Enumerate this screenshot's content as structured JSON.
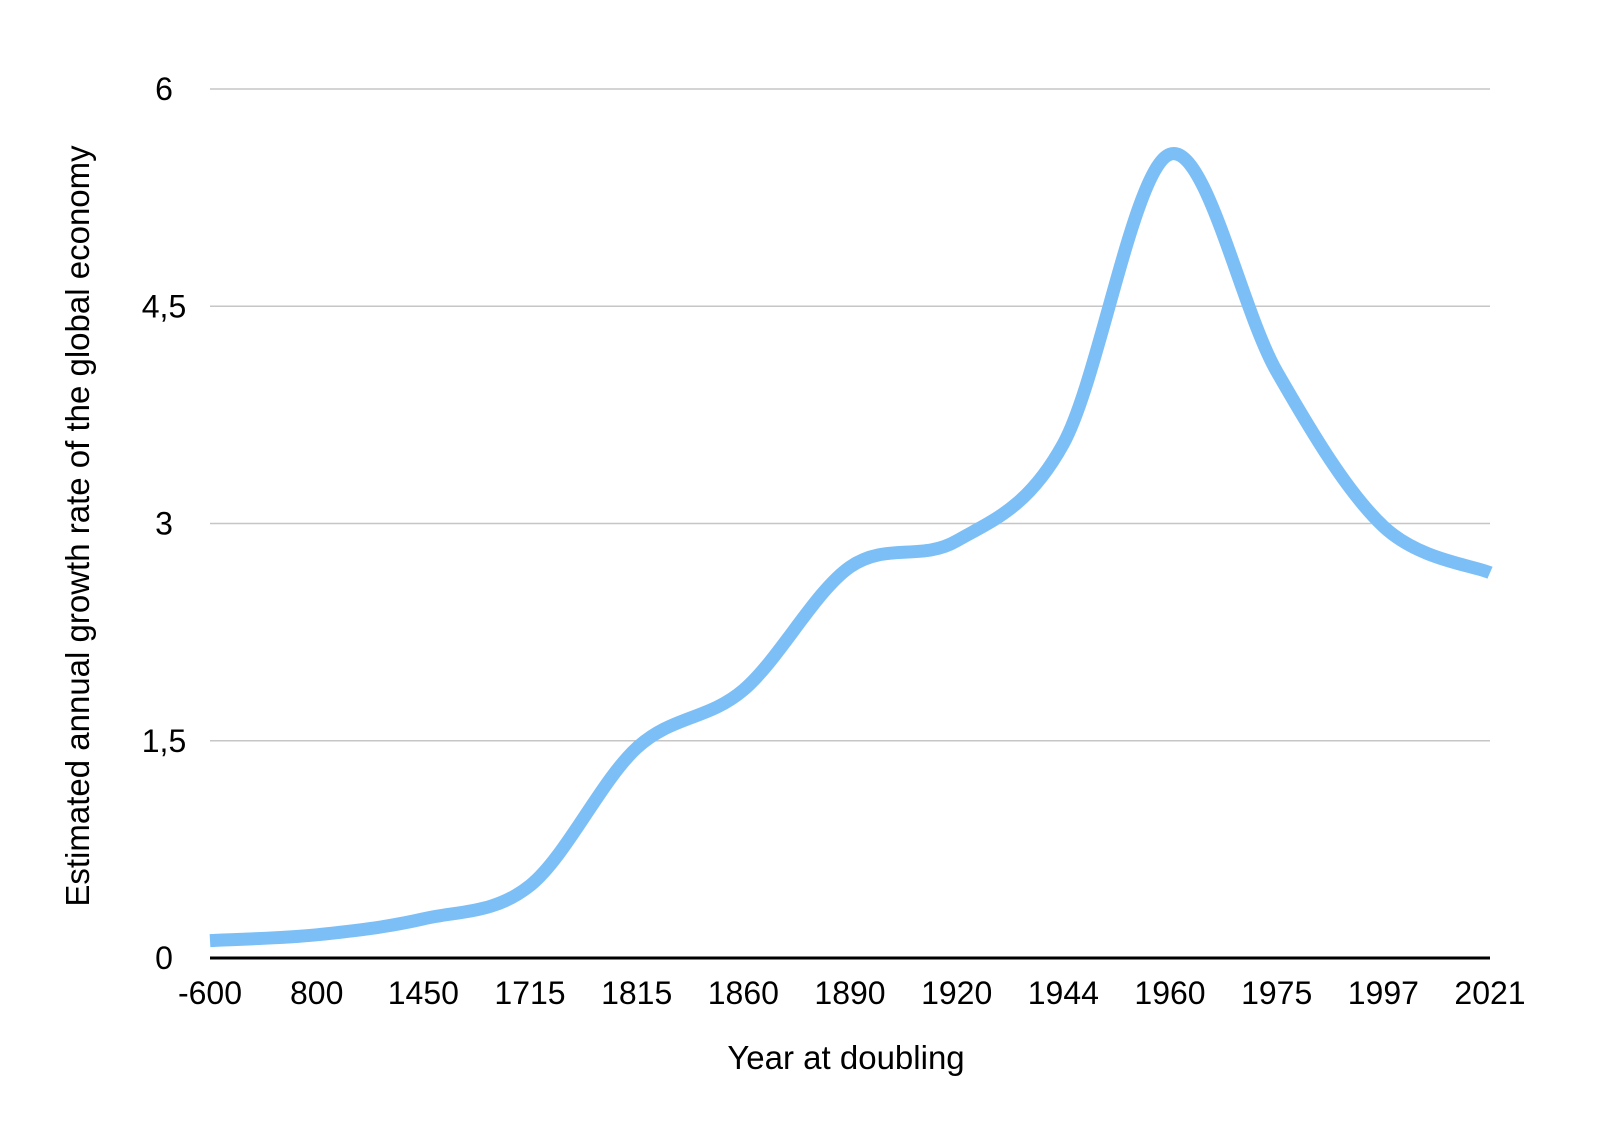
{
  "chart_data": {
    "type": "line",
    "title": "",
    "xlabel": "Year at doubling",
    "ylabel": "Estimated annual growth rate of the global economy",
    "categories": [
      "-600",
      "800",
      "1450",
      "1715",
      "1815",
      "1860",
      "1890",
      "1920",
      "1944",
      "1960",
      "1975",
      "1997",
      "2021"
    ],
    "series": [
      {
        "values": [
          0.12,
          0.16,
          0.27,
          0.5,
          1.45,
          1.85,
          2.7,
          2.88,
          3.55,
          5.55,
          4.05,
          2.98,
          2.66
        ]
      }
    ],
    "ylim": [
      0,
      6
    ],
    "yticks": [
      0,
      1.5,
      3,
      4.5,
      6
    ],
    "ytick_labels": [
      "0",
      "1,5",
      "3",
      "4,5",
      "6"
    ],
    "grid": true,
    "legend": "none",
    "colors": {
      "line": "#7cbff7",
      "grid": "#c6c6c6",
      "axis": "#000000"
    }
  }
}
